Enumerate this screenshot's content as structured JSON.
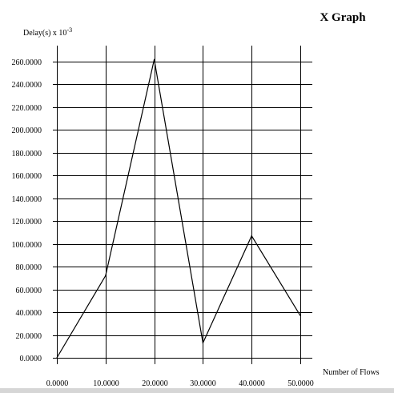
{
  "chart_data": {
    "type": "line",
    "title": "X Graph",
    "ylabel_base": "Delay(s) x 10",
    "ylabel_exponent": "-3",
    "xlabel": "Number of Flows",
    "x": [
      0,
      10,
      20,
      30,
      40,
      50
    ],
    "series": [
      {
        "values": [
          0,
          72,
          262,
          13,
          107,
          37
        ]
      }
    ],
    "xlim": [
      0,
      50
    ],
    "ylim": [
      0,
      260
    ],
    "xticks": [
      0,
      10,
      20,
      30,
      40,
      50
    ],
    "yticks": [
      0,
      20,
      40,
      60,
      80,
      100,
      120,
      140,
      160,
      180,
      200,
      220,
      240,
      260
    ],
    "xtick_labels": [
      "0.0000",
      "10.0000",
      "20.0000",
      "30.0000",
      "40.0000",
      "50.0000"
    ],
    "ytick_labels": [
      "0.0000",
      "20.0000",
      "40.0000",
      "60.0000",
      "80.0000",
      "100.0000",
      "120.0000",
      "140.0000",
      "160.0000",
      "180.0000",
      "200.0000",
      "220.0000",
      "240.0000",
      "260.0000"
    ],
    "grid": true,
    "legend": "none",
    "colors": {
      "background": "#ffffff",
      "line": "#000000",
      "grid": "#000000"
    }
  }
}
